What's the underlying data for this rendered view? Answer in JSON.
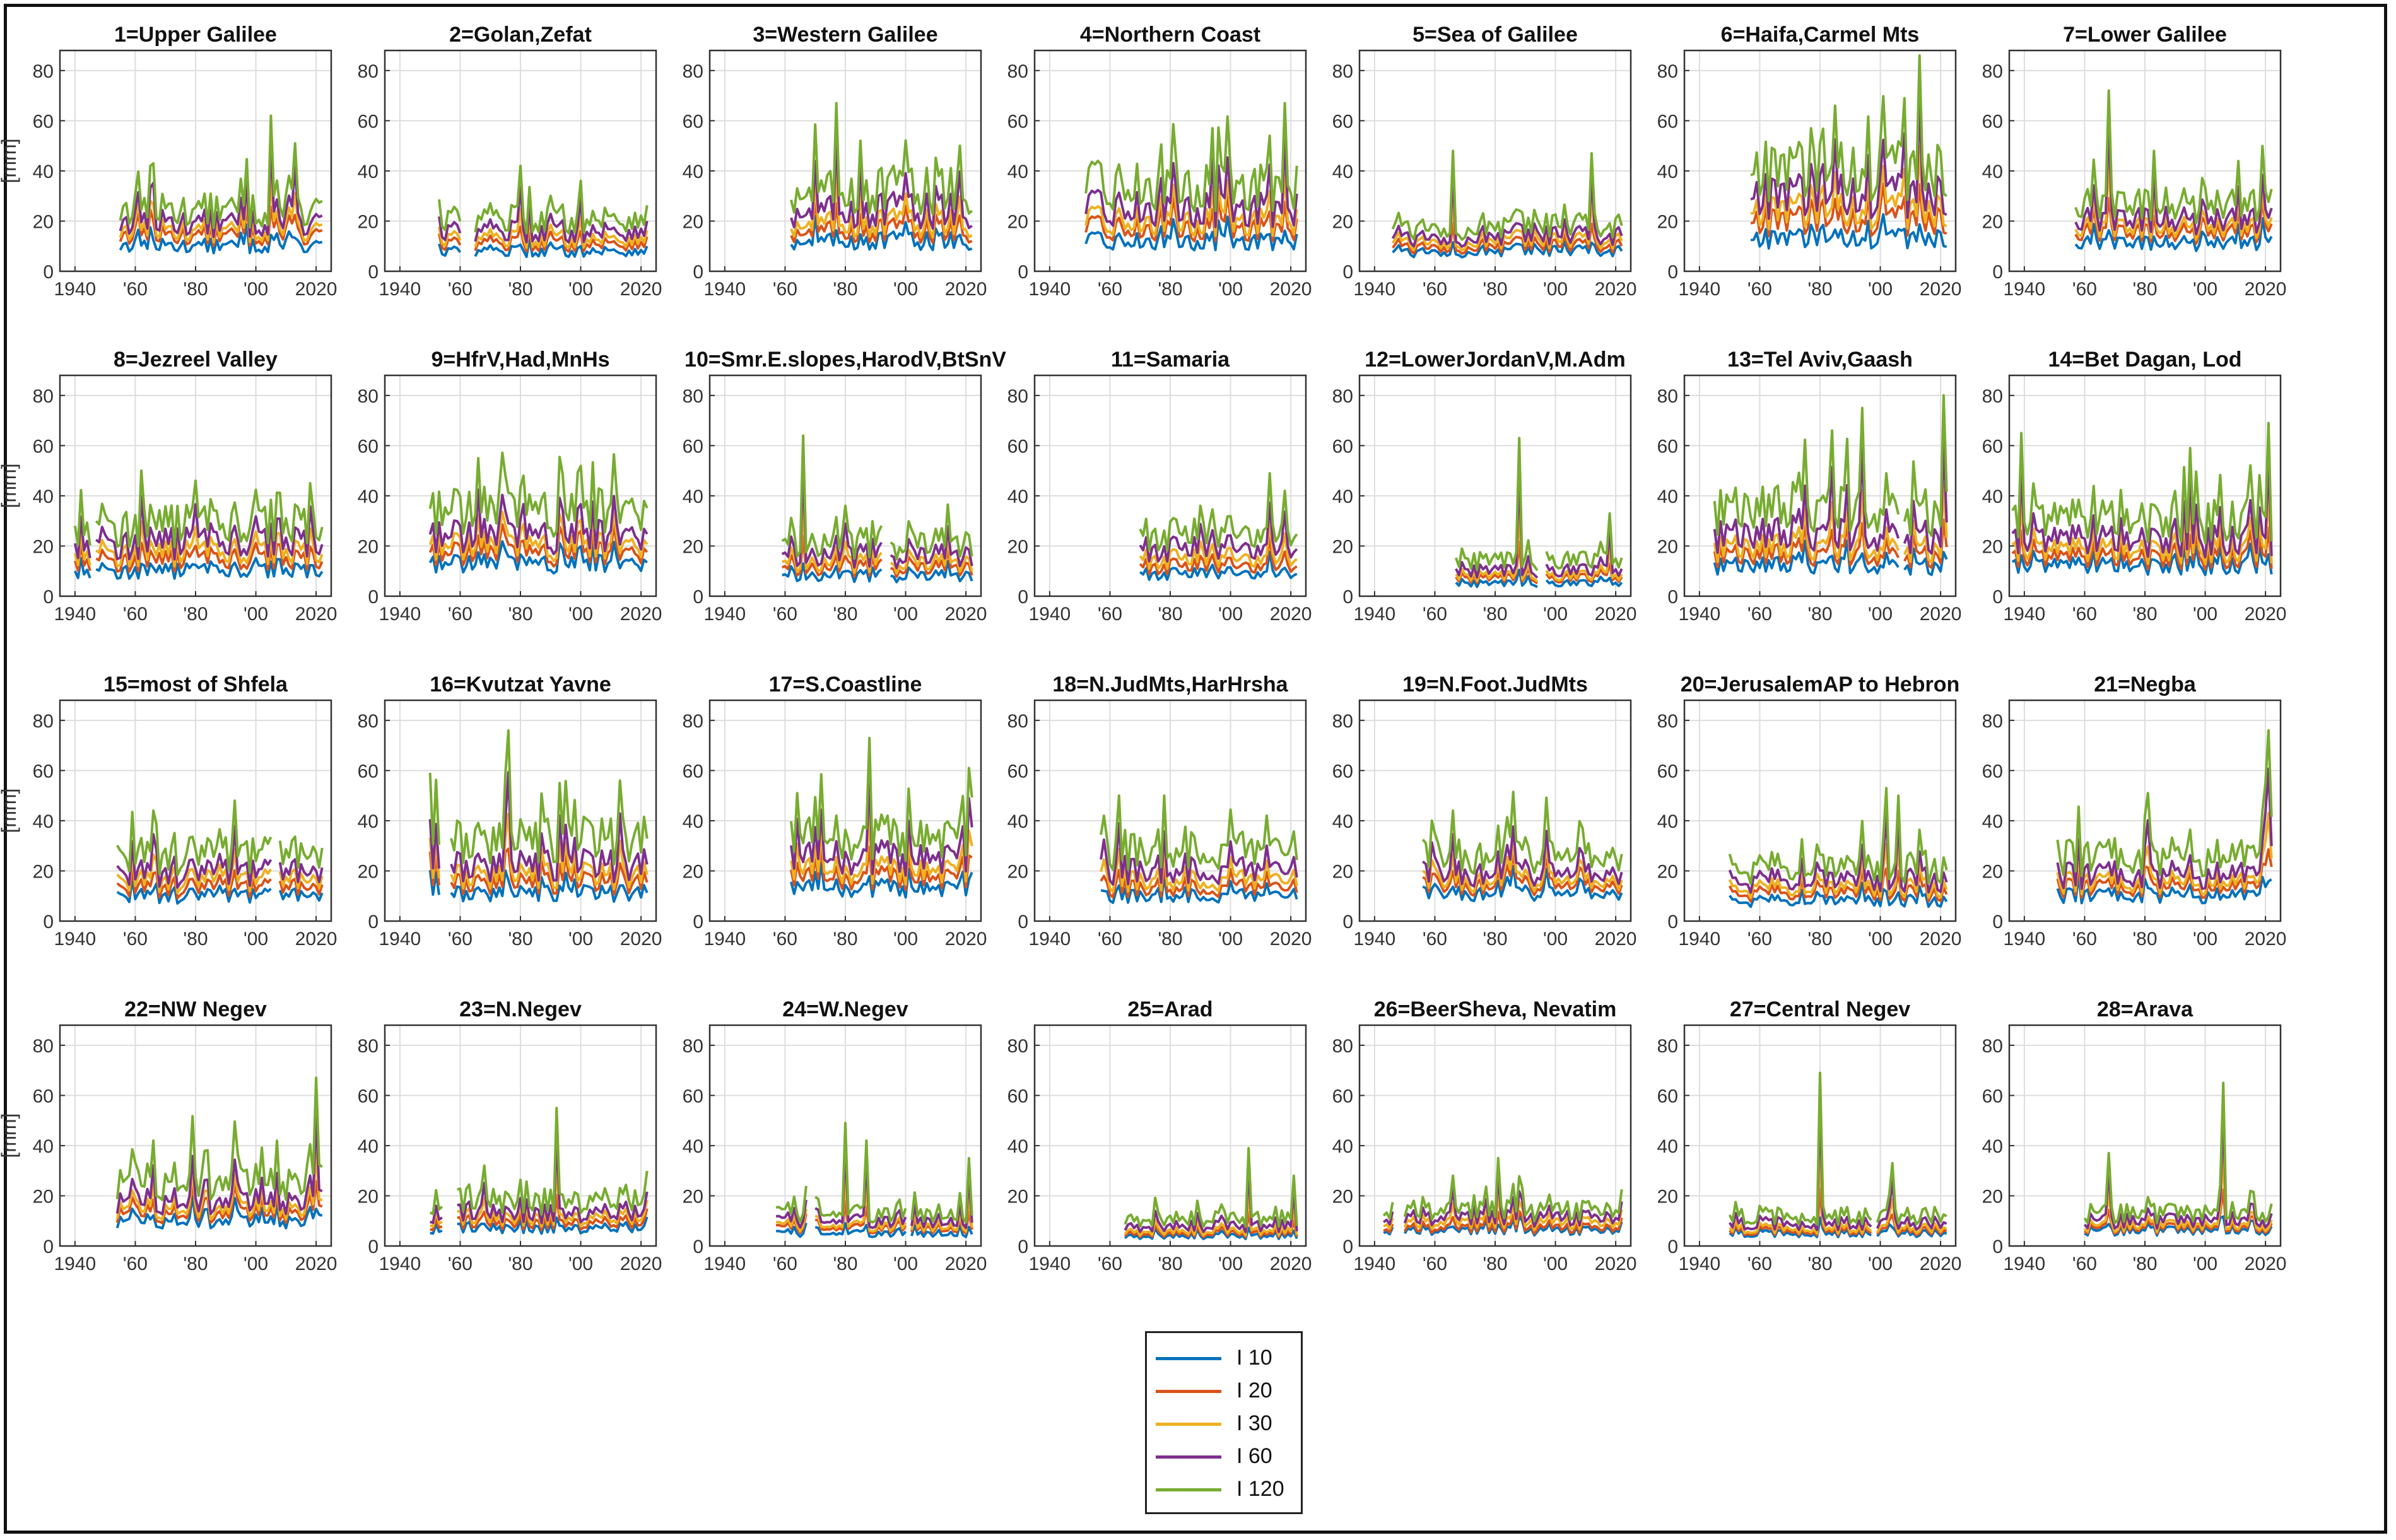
{
  "figure": {
    "ylabel": "[mm]",
    "xtick_labels": [
      "1940",
      "'60",
      "'80",
      "'00",
      "2020"
    ],
    "xtick_values": [
      1940,
      1960,
      1980,
      2000,
      2020
    ],
    "ytick_values": [
      0,
      20,
      40,
      60,
      80
    ],
    "xlim": [
      1935,
      2025
    ],
    "ylim": [
      0,
      88
    ],
    "series_colors": {
      "I 10": "#0072BD",
      "I 20": "#D95319",
      "I 30": "#EDB120",
      "I 60": "#7E2F8E",
      "I 120": "#77AC30"
    }
  },
  "legend": {
    "placement": "bottom-center",
    "entries": [
      {
        "label": "I 10",
        "color": "#0072BD"
      },
      {
        "label": "I 20",
        "color": "#D95319"
      },
      {
        "label": "I 30",
        "color": "#EDB120"
      },
      {
        "label": "I 60",
        "color": "#7E2F8E"
      },
      {
        "label": "I 120",
        "color": "#77AC30"
      }
    ]
  },
  "chart_data": [
    {
      "type": "line",
      "title": "1=Upper Galilee",
      "xlim": [
        1935,
        2025
      ],
      "ylim": [
        0,
        88
      ],
      "x_range": [
        1955,
        2022
      ],
      "peaks": [
        [
          2005,
          62
        ],
        [
          2013,
          51
        ],
        [
          1966,
          43
        ]
      ],
      "levels": [
        10,
        14,
        16,
        19,
        24
      ]
    },
    {
      "type": "line",
      "title": "2=Golan,Zefat",
      "xlim": [
        1935,
        2025
      ],
      "ylim": [
        0,
        88
      ],
      "x_range": [
        1953,
        2022
      ],
      "gaps": [
        [
          1960,
          1965
        ]
      ],
      "peaks": [
        [
          1980,
          42
        ],
        [
          2000,
          36
        ]
      ],
      "levels": [
        8,
        11,
        13,
        16,
        21
      ]
    },
    {
      "type": "line",
      "title": "3=Western Galilee",
      "xlim": [
        1935,
        2025
      ],
      "ylim": [
        0,
        88
      ],
      "x_range": [
        1962,
        2022
      ],
      "peaks": [
        [
          1977,
          67
        ],
        [
          1985,
          52
        ],
        [
          2018,
          50
        ]
      ],
      "levels": [
        12,
        16,
        19,
        24,
        32
      ]
    },
    {
      "type": "line",
      "title": "4=Northern Coast",
      "xlim": [
        1935,
        2025
      ],
      "ylim": [
        0,
        88
      ],
      "x_range": [
        1952,
        2022
      ],
      "gaps": [
        [
          1997,
          1998
        ]
      ],
      "peaks": [
        [
          2018,
          67
        ],
        [
          1994,
          57
        ],
        [
          2013,
          54
        ]
      ],
      "levels": [
        12,
        17,
        20,
        25,
        34
      ]
    },
    {
      "type": "line",
      "title": "5=Sea of Galilee",
      "xlim": [
        1935,
        2025
      ],
      "ylim": [
        0,
        88
      ],
      "x_range": [
        1946,
        2022
      ],
      "peaks": [
        [
          1966,
          48
        ],
        [
          2012,
          47
        ]
      ],
      "levels": [
        8,
        10,
        12,
        14,
        18
      ]
    },
    {
      "type": "line",
      "title": "6=Haifa,Carmel Mts",
      "xlim": [
        1935,
        2025
      ],
      "ylim": [
        0,
        88
      ],
      "x_range": [
        1957,
        2022
      ],
      "peaks": [
        [
          2013,
          86
        ],
        [
          2008,
          69
        ],
        [
          1985,
          66
        ]
      ],
      "levels": [
        13,
        20,
        24,
        30,
        40
      ]
    },
    {
      "type": "line",
      "title": "7=Lower Galilee",
      "xlim": [
        1935,
        2025
      ],
      "ylim": [
        0,
        88
      ],
      "x_range": [
        1957,
        2022
      ],
      "peaks": [
        [
          1968,
          72
        ],
        [
          1983,
          48
        ]
      ],
      "levels": [
        11,
        15,
        17,
        20,
        26
      ]
    },
    {
      "type": "line",
      "title": "8=Jezreel Valley",
      "xlim": [
        1935,
        2025
      ],
      "ylim": [
        0,
        88
      ],
      "x_range": [
        1940,
        2022
      ],
      "gaps": [
        [
          1945,
          1947
        ],
        [
          1951,
          1952
        ],
        [
          1954,
          1955
        ]
      ],
      "peaks": [
        [
          1962,
          50
        ],
        [
          1980,
          46
        ],
        [
          2018,
          45
        ]
      ],
      "levels": [
        10,
        14,
        17,
        21,
        28
      ]
    },
    {
      "type": "line",
      "title": "9=HfrV,Had,MnHs",
      "xlim": [
        1935,
        2025
      ],
      "ylim": [
        0,
        88
      ],
      "x_range": [
        1950,
        2022
      ],
      "peaks": [
        [
          1966,
          55
        ],
        [
          1981,
          48
        ]
      ],
      "levels": [
        13,
        17,
        20,
        24,
        34
      ]
    },
    {
      "type": "line",
      "title": "10=Smr.E.slopes,HarodV,BtSnV",
      "xlim": [
        1935,
        2025
      ],
      "ylim": [
        0,
        88
      ],
      "x_range": [
        1959,
        2022
      ],
      "gaps": [
        [
          1992,
          1995
        ]
      ],
      "peaks": [
        [
          1966,
          64
        ],
        [
          1980,
          36
        ]
      ],
      "levels": [
        8,
        11,
        13,
        16,
        21
      ]
    },
    {
      "type": "line",
      "title": "11=Samaria",
      "xlim": [
        1935,
        2025
      ],
      "ylim": [
        0,
        88
      ],
      "x_range": [
        1970,
        2022
      ],
      "peaks": [
        [
          2018,
          42
        ],
        [
          1990,
          36
        ]
      ],
      "levels": [
        9,
        12,
        15,
        19,
        25
      ]
    },
    {
      "type": "line",
      "title": "12=LowerJordanV,M.Adm",
      "xlim": [
        1935,
        2025
      ],
      "ylim": [
        0,
        88
      ],
      "x_range": [
        1967,
        2022
      ],
      "gaps": [
        [
          1994,
          1997
        ]
      ],
      "peaks": [
        [
          1988,
          63
        ],
        [
          2018,
          33
        ]
      ],
      "levels": [
        5,
        7,
        8,
        10,
        14
      ]
    },
    {
      "type": "line",
      "title": "13=Tel Aviv,Gaash",
      "xlim": [
        1935,
        2025
      ],
      "ylim": [
        0,
        88
      ],
      "x_range": [
        1945,
        2022
      ],
      "gaps": [
        [
          2006,
          2008
        ]
      ],
      "peaks": [
        [
          2021,
          80
        ],
        [
          1994,
          75
        ],
        [
          1984,
          66
        ]
      ],
      "levels": [
        12,
        16,
        19,
        24,
        34
      ]
    },
    {
      "type": "line",
      "title": "14=Bet Dagan, Lod",
      "xlim": [
        1935,
        2025
      ],
      "ylim": [
        0,
        88
      ],
      "x_range": [
        1936,
        2022
      ],
      "peaks": [
        [
          2021,
          69
        ],
        [
          1939,
          65
        ],
        [
          1995,
          59
        ]
      ],
      "levels": [
        12,
        15,
        18,
        22,
        30
      ]
    },
    {
      "type": "line",
      "title": "15=most of Shfela",
      "xlim": [
        1935,
        2025
      ],
      "ylim": [
        0,
        88
      ],
      "x_range": [
        1954,
        2022
      ],
      "gaps": [
        [
          2005,
          2008
        ]
      ],
      "peaks": [
        [
          1993,
          48
        ],
        [
          1966,
          44
        ]
      ],
      "levels": [
        10,
        13,
        16,
        19,
        26
      ]
    },
    {
      "type": "line",
      "title": "16=Kvutzat Yavne",
      "xlim": [
        1935,
        2025
      ],
      "ylim": [
        0,
        88
      ],
      "x_range": [
        1950,
        2022
      ],
      "gaps": [
        [
          1953,
          1957
        ]
      ],
      "peaks": [
        [
          1976,
          76
        ],
        [
          2013,
          56
        ],
        [
          1993,
          55
        ]
      ],
      "levels": [
        11,
        15,
        18,
        22,
        32
      ]
    },
    {
      "type": "line",
      "title": "17=S.Coastline",
      "xlim": [
        1935,
        2025
      ],
      "ylim": [
        0,
        88
      ],
      "x_range": [
        1962,
        2022
      ],
      "peaks": [
        [
          1988,
          73
        ],
        [
          2021,
          61
        ],
        [
          1964,
          51
        ]
      ],
      "levels": [
        13,
        17,
        20,
        25,
        33
      ]
    },
    {
      "type": "line",
      "title": "18=N.JudMts,HarHrsha",
      "xlim": [
        1935,
        2025
      ],
      "ylim": [
        0,
        88
      ],
      "x_range": [
        1957,
        2022
      ],
      "gaps": [
        [
          1997,
          1998
        ]
      ],
      "peaks": [
        [
          1963,
          50
        ],
        [
          1958,
          42
        ]
      ],
      "levels": [
        10,
        13,
        16,
        20,
        28
      ]
    },
    {
      "type": "line",
      "title": "19=N.Foot.JudMts",
      "xlim": [
        1935,
        2025
      ],
      "ylim": [
        0,
        88
      ],
      "x_range": [
        1956,
        2022
      ],
      "peaks": [
        [
          1966,
          44
        ],
        [
          1959,
          40
        ]
      ],
      "levels": [
        11,
        14,
        16,
        19,
        26
      ]
    },
    {
      "type": "line",
      "title": "20=JerusalemAP to Hebron",
      "xlim": [
        1935,
        2025
      ],
      "ylim": [
        0,
        88
      ],
      "x_range": [
        1950,
        2022
      ],
      "peaks": [
        [
          2002,
          53
        ],
        [
          2006,
          50
        ]
      ],
      "levels": [
        8,
        11,
        13,
        16,
        21
      ]
    },
    {
      "type": "line",
      "title": "21=Negba",
      "xlim": [
        1935,
        2025
      ],
      "ylim": [
        0,
        88
      ],
      "x_range": [
        1951,
        2022
      ],
      "peaks": [
        [
          2021,
          76
        ],
        [
          2020,
          55
        ],
        [
          1981,
          51
        ]
      ],
      "levels": [
        10,
        13,
        15,
        18,
        25
      ]
    },
    {
      "type": "line",
      "title": "22=NW Negev",
      "xlim": [
        1935,
        2025
      ],
      "ylim": [
        0,
        88
      ],
      "x_range": [
        1954,
        2022
      ],
      "peaks": [
        [
          2020,
          67
        ],
        [
          1966,
          42
        ]
      ],
      "levels": [
        10,
        13,
        15,
        18,
        26
      ]
    },
    {
      "type": "line",
      "title": "23=N.Negev",
      "xlim": [
        1935,
        2025
      ],
      "ylim": [
        0,
        88
      ],
      "x_range": [
        1950,
        2022
      ],
      "gaps": [
        [
          1954,
          1959
        ]
      ],
      "peaks": [
        [
          1992,
          55
        ],
        [
          1968,
          32
        ]
      ],
      "levels": [
        7,
        9,
        11,
        13,
        18
      ]
    },
    {
      "type": "line",
      "title": "24=W.Negev",
      "xlim": [
        1935,
        2025
      ],
      "ylim": [
        0,
        88
      ],
      "x_range": [
        1957,
        2022
      ],
      "gaps": [
        [
          1967,
          1970
        ],
        [
          2000,
          2002
        ]
      ],
      "peaks": [
        [
          1980,
          49
        ],
        [
          1987,
          42
        ],
        [
          2021,
          35
        ]
      ],
      "levels": [
        5,
        7,
        8,
        10,
        13
      ]
    },
    {
      "type": "line",
      "title": "25=Arad",
      "xlim": [
        1935,
        2025
      ],
      "ylim": [
        0,
        88
      ],
      "x_range": [
        1965,
        2022
      ],
      "peaks": [
        [
          2006,
          39
        ],
        [
          2021,
          28
        ]
      ],
      "levels": [
        4,
        5,
        6,
        8,
        11
      ]
    },
    {
      "type": "line",
      "title": "26=BeerSheva, Nevatim",
      "xlim": [
        1935,
        2025
      ],
      "ylim": [
        0,
        88
      ],
      "x_range": [
        1943,
        2022
      ],
      "gaps": [
        [
          1946,
          1950
        ]
      ],
      "peaks": [
        [
          1981,
          35
        ],
        [
          1966,
          28
        ]
      ],
      "levels": [
        6,
        7,
        9,
        11,
        14
      ]
    },
    {
      "type": "line",
      "title": "27=Central Negev",
      "xlim": [
        1935,
        2025
      ],
      "ylim": [
        0,
        88
      ],
      "x_range": [
        1950,
        2022
      ],
      "gaps": [
        [
          1997,
          1999
        ]
      ],
      "peaks": [
        [
          1980,
          69
        ],
        [
          2004,
          33
        ]
      ],
      "levels": [
        5,
        6,
        7,
        9,
        12
      ]
    },
    {
      "type": "line",
      "title": "28=Arava",
      "xlim": [
        1935,
        2025
      ],
      "ylim": [
        0,
        88
      ],
      "x_range": [
        1960,
        2022
      ],
      "peaks": [
        [
          2006,
          65
        ],
        [
          1968,
          37
        ]
      ],
      "levels": [
        6,
        7,
        8,
        10,
        13
      ]
    }
  ]
}
